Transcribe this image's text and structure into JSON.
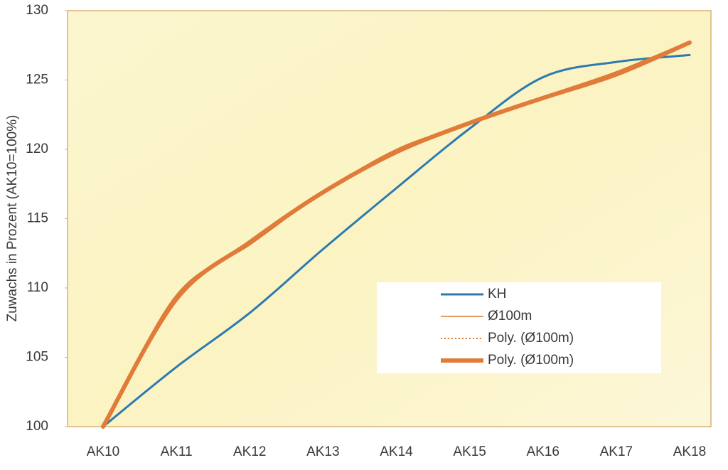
{
  "chart_data": {
    "type": "line",
    "y_label": "Zuwachs in Prozent (AK10=100%)",
    "categories": [
      "AK10",
      "AK11",
      "AK12",
      "AK13",
      "AK14",
      "AK15",
      "AK16",
      "AK17",
      "AK18"
    ],
    "series": [
      {
        "name": "KH",
        "color": "#2b7bb0",
        "linewidth": 3,
        "style": "solid",
        "values": [
          100,
          104.3,
          108.2,
          112.8,
          117.2,
          121.5,
          125.2,
          126.3,
          126.8
        ]
      },
      {
        "name": "Ø100m",
        "color": "#d9782f",
        "linewidth": 1.5,
        "style": "solid",
        "values": [
          100,
          109.5,
          113.1,
          116.9,
          120,
          121.9,
          123.8,
          125.6,
          127.8
        ]
      },
      {
        "name": "Poly. (Ø100m)",
        "color": "#d9782f",
        "linewidth": 2,
        "style": "dotted",
        "values": [
          100,
          109.2,
          113.3,
          116.9,
          119.8,
          121.9,
          123.7,
          125.4,
          127.7
        ]
      },
      {
        "name": "Poly. (Ø100m)",
        "color": "#e07b39",
        "linewidth": 6,
        "style": "solid",
        "values": [
          100,
          109.2,
          113.3,
          116.9,
          119.8,
          121.9,
          123.7,
          125.4,
          127.7
        ]
      }
    ],
    "ylim": [
      100,
      130
    ],
    "yticks": [
      100,
      105,
      110,
      115,
      120,
      125,
      130
    ],
    "legend": "lower-right"
  }
}
